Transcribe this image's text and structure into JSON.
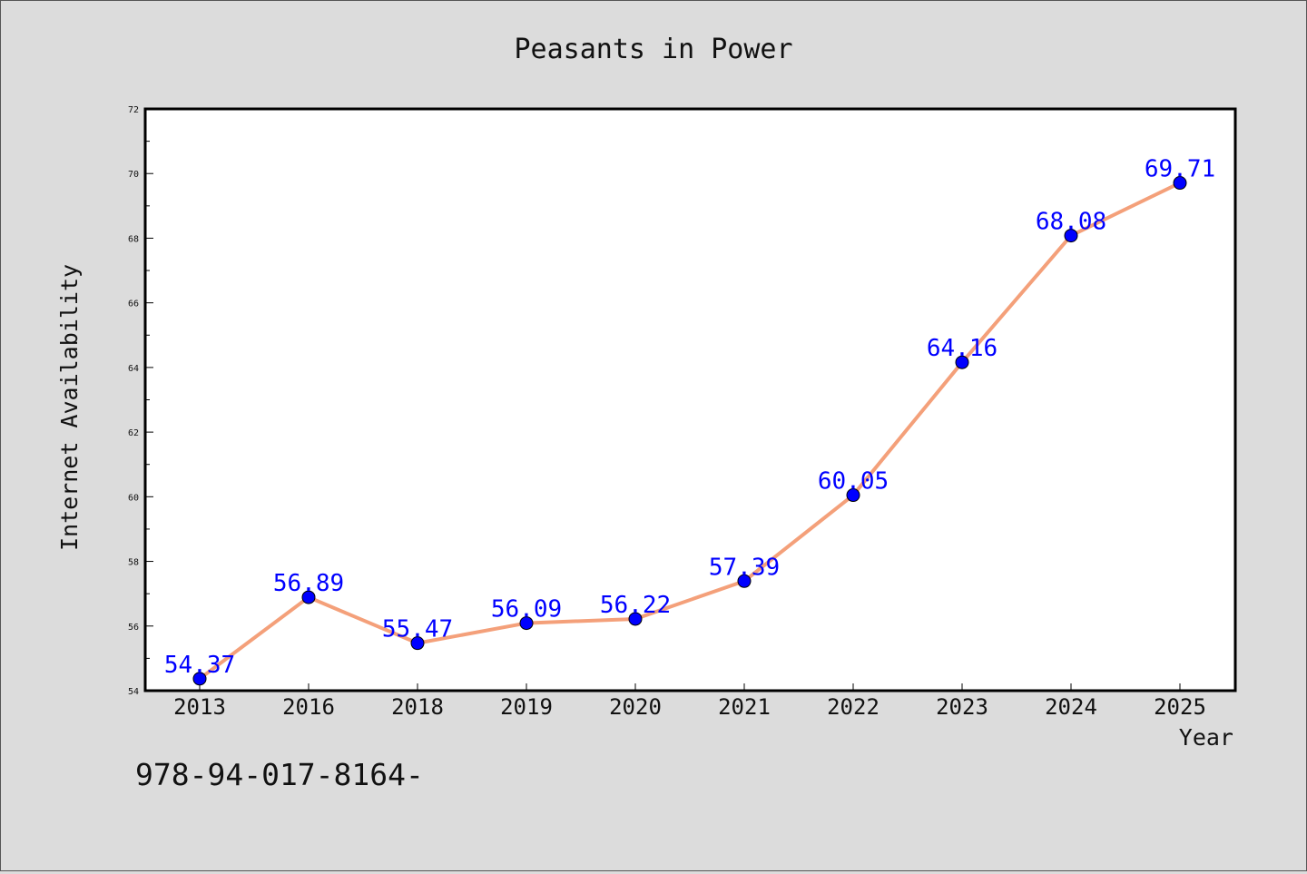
{
  "chart_data": {
    "type": "line",
    "title": "Peasants in Power",
    "xlabel": "Year",
    "ylabel": "Internet Availability",
    "categories": [
      "2013",
      "2016",
      "2018",
      "2019",
      "2020",
      "2021",
      "2022",
      "2023",
      "2024",
      "2025"
    ],
    "series": [
      {
        "values": [
          54.37,
          56.89,
          55.47,
          56.09,
          56.22,
          57.39,
          60.05,
          64.16,
          68.08,
          69.71
        ],
        "labels": [
          "54.37",
          "56.89",
          "55.47",
          "56.09",
          "56.22",
          "57.39",
          "60.05",
          "64.16",
          "68.08",
          "69.71"
        ],
        "line_color": "#f4a07a",
        "marker_color": "#0000ff",
        "label_color": "#0000ff"
      }
    ],
    "ylim": [
      54,
      72
    ],
    "yticks": [
      "54",
      "56",
      "58",
      "60",
      "62",
      "64",
      "66",
      "68",
      "70",
      "72"
    ],
    "grid": false,
    "background": "#dcdcdc",
    "plot_background": "#ffffff"
  },
  "footnote": "978-94-017-8164-"
}
